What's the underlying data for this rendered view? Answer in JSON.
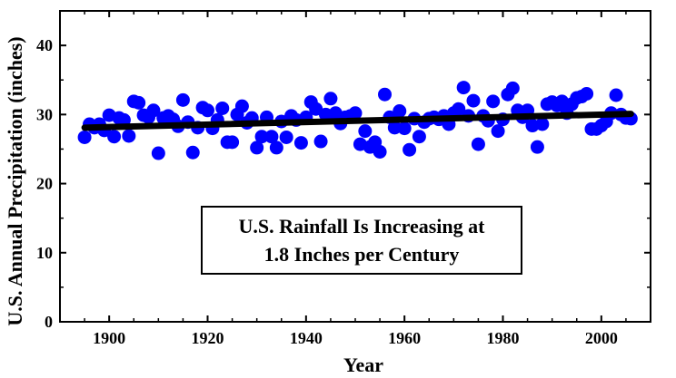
{
  "chart_data": {
    "type": "scatter",
    "xlabel": "Year",
    "ylabel": "U.S. Annual Precipitation (inches)",
    "xlim": [
      1890,
      2010
    ],
    "ylim": [
      0,
      45
    ],
    "x_ticks": [
      1900,
      1920,
      1940,
      1960,
      1980,
      2000
    ],
    "y_ticks": [
      0,
      10,
      20,
      30,
      40
    ],
    "grid": false,
    "legend": "none",
    "annotation": [
      "U.S. Rainfall Is Increasing at",
      "1.8 Inches per Century"
    ],
    "marker_color": "#0000ff",
    "trend_color": "#000000",
    "trend_line": {
      "x": [
        1895,
        2006
      ],
      "y": [
        28.1,
        30.1
      ]
    },
    "series": [
      {
        "x": [
          1895,
          1896,
          1897,
          1898,
          1899,
          1900,
          1901,
          1902,
          1903,
          1904,
          1905,
          1906,
          1907,
          1908,
          1909,
          1910,
          1911,
          1912,
          1913,
          1914,
          1915,
          1916,
          1917,
          1918,
          1919,
          1920,
          1921,
          1922,
          1923,
          1924,
          1925,
          1926,
          1927,
          1928,
          1929,
          1930,
          1931,
          1932,
          1933,
          1934,
          1935,
          1936,
          1937,
          1938,
          1939,
          1940,
          1941,
          1942,
          1943,
          1944,
          1945,
          1946,
          1947,
          1948,
          1949,
          1950,
          1951,
          1952,
          1953,
          1954,
          1955,
          1956,
          1957,
          1958,
          1959,
          1960,
          1961,
          1962,
          1963,
          1964,
          1965,
          1966,
          1967,
          1968,
          1969,
          1970,
          1971,
          1972,
          1973,
          1974,
          1975,
          1976,
          1977,
          1978,
          1979,
          1980,
          1981,
          1982,
          1983,
          1984,
          1985,
          1986,
          1987,
          1988,
          1989,
          1990,
          1991,
          1992,
          1993,
          1994,
          1995,
          1996,
          1997,
          1998,
          1999,
          2000,
          2001,
          2002,
          2003,
          2004,
          2005,
          2006
        ],
        "y": [
          26.7,
          28.6,
          28.1,
          28.6,
          27.7,
          29.9,
          26.8,
          29.5,
          29.2,
          26.9,
          31.9,
          31.7,
          29.9,
          29.6,
          30.6,
          24.4,
          29.5,
          29.8,
          29.3,
          28.3,
          32.1,
          28.9,
          24.5,
          28.1,
          31.0,
          30.6,
          28.0,
          29.2,
          30.9,
          26.0,
          26.0,
          30.0,
          31.2,
          28.8,
          29.5,
          25.2,
          26.8,
          29.6,
          26.8,
          25.2,
          29.0,
          26.7,
          29.8,
          29.2,
          25.9,
          29.6,
          31.8,
          30.8,
          26.1,
          30.0,
          32.3,
          30.2,
          28.7,
          29.6,
          29.8,
          30.2,
          25.7,
          27.6,
          25.3,
          26.0,
          24.6,
          32.9,
          29.6,
          28.1,
          30.5,
          28.0,
          24.9,
          29.4,
          26.8,
          28.9,
          29.4,
          29.6,
          29.3,
          29.8,
          28.6,
          30.2,
          30.8,
          33.9,
          29.8,
          32.0,
          25.7,
          29.8,
          29.1,
          31.9,
          27.6,
          29.3,
          32.9,
          33.8,
          30.6,
          29.6,
          30.6,
          28.4,
          25.3,
          28.6,
          31.5,
          31.8,
          31.3,
          31.9,
          30.2,
          31.5,
          32.4,
          32.6,
          33.0,
          27.9,
          27.9,
          28.4,
          29.0,
          30.2,
          32.8,
          30.0,
          29.5,
          29.4
        ]
      }
    ]
  }
}
